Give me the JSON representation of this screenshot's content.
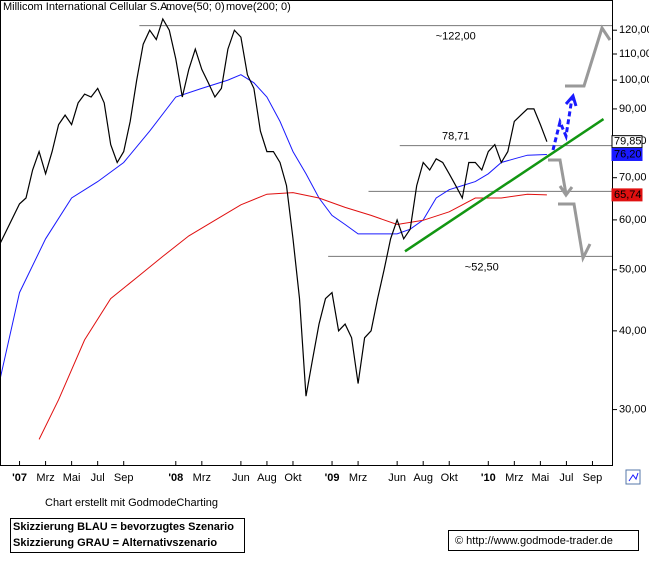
{
  "chart_data": {
    "type": "line",
    "title": "Millicom International Cellular S.A.",
    "log_scale": true,
    "legend_color": "#e0d000",
    "xlim": [
      -1.5,
      45.5
    ],
    "ylim": [
      24.5,
      134
    ],
    "xticks": [
      {
        "value": 0,
        "label": "'07",
        "major": true
      },
      {
        "value": 2,
        "label": "Mrz"
      },
      {
        "value": 4,
        "label": "Mai"
      },
      {
        "value": 6,
        "label": "Jul"
      },
      {
        "value": 8,
        "label": "Sep"
      },
      {
        "value": 12,
        "label": "'08",
        "major": true
      },
      {
        "value": 14,
        "label": "Mrz"
      },
      {
        "value": 17,
        "label": "Jun"
      },
      {
        "value": 19,
        "label": "Aug"
      },
      {
        "value": 21,
        "label": "Okt"
      },
      {
        "value": 24,
        "label": "'09",
        "major": true
      },
      {
        "value": 26,
        "label": "Mrz"
      },
      {
        "value": 29,
        "label": "Jun"
      },
      {
        "value": 31,
        "label": "Aug"
      },
      {
        "value": 33,
        "label": "Okt"
      },
      {
        "value": 36,
        "label": "'10",
        "major": true
      },
      {
        "value": 38,
        "label": "Mrz"
      },
      {
        "value": 40,
        "label": "Mai"
      },
      {
        "value": 42,
        "label": "Jul"
      },
      {
        "value": 44,
        "label": "Sep"
      }
    ],
    "yticks": [
      {
        "value": 120,
        "label": "120,00"
      },
      {
        "value": 110,
        "label": "110,00"
      },
      {
        "value": 100,
        "label": "100,00"
      },
      {
        "value": 90,
        "label": "90,00"
      },
      {
        "value": 80,
        "label": "80,00"
      },
      {
        "value": 70,
        "label": "70,00"
      },
      {
        "value": 60,
        "label": "60,00"
      },
      {
        "value": 50,
        "label": "50,00"
      },
      {
        "value": 40,
        "label": "40,00"
      },
      {
        "value": 30,
        "label": "30,00"
      }
    ],
    "price": {
      "color": "#000000",
      "x": [
        -1.5,
        0,
        0.5,
        1,
        1.5,
        2,
        2.5,
        3,
        3.5,
        4,
        4.5,
        5,
        5.5,
        6,
        6.5,
        7,
        7.5,
        8,
        8.5,
        9,
        9.5,
        10,
        10.5,
        11,
        11.5,
        12,
        12.5,
        13,
        13.5,
        14,
        14.5,
        15,
        15.5,
        16,
        16.5,
        17,
        17.5,
        18,
        18.5,
        19,
        19.5,
        20,
        20.5,
        21,
        21.5,
        22,
        22.5,
        23,
        23.5,
        24,
        24.5,
        25,
        25.5,
        26,
        26.5,
        27,
        27.5,
        28,
        28.5,
        29,
        29.5,
        30,
        30.5,
        31,
        31.5,
        32,
        32.5,
        33,
        33.5,
        34,
        34.5,
        35,
        35.5,
        36,
        36.5,
        37,
        37.5,
        38,
        38.5,
        39,
        39.5,
        40,
        40.5
      ],
      "values": [
        55,
        63.6,
        65,
        72,
        77,
        71,
        77,
        85,
        88,
        85,
        92,
        95,
        94,
        97,
        92,
        79,
        74,
        77,
        86,
        100,
        114,
        120,
        116,
        125,
        120,
        108,
        94,
        104,
        112,
        104,
        99,
        94,
        97,
        112,
        120,
        117,
        102,
        97,
        83,
        77,
        77,
        74,
        68,
        56,
        45,
        31.5,
        36,
        41,
        45,
        46,
        40,
        41,
        39,
        33,
        39,
        40,
        45,
        50,
        56,
        60,
        56,
        58,
        68,
        74,
        72,
        75,
        74,
        71,
        68,
        65,
        74,
        74,
        72,
        77,
        79,
        74,
        77,
        86,
        88,
        90,
        90,
        85,
        79.85
      ]
    },
    "series": [
      {
        "name": "move(50; 0)",
        "color": "#1a1aff",
        "x": [
          -1.5,
          0,
          2,
          4,
          6,
          8,
          10,
          12,
          14,
          16,
          17,
          18,
          19,
          20,
          21,
          22,
          23,
          24,
          25,
          26,
          28,
          29,
          30,
          31,
          32,
          33,
          34,
          35,
          36,
          37,
          38,
          39,
          40.5
        ],
        "values": [
          33.5,
          46,
          56,
          65,
          69,
          74,
          83,
          94,
          97,
          100,
          102,
          99,
          94,
          86,
          77,
          71,
          65,
          61,
          59,
          57,
          57,
          57,
          58,
          60,
          65,
          67,
          68,
          69,
          71,
          74,
          75,
          76,
          76.2
        ]
      },
      {
        "name": "move(200; 0)",
        "color": "#e01010",
        "x": [
          1.5,
          3,
          5,
          7,
          9,
          11,
          13,
          15,
          17,
          19,
          21,
          23,
          25,
          27,
          29,
          31,
          33,
          35,
          37,
          39,
          40.5
        ],
        "values": [
          26.9,
          31.1,
          38.7,
          45,
          48.6,
          52.5,
          56.6,
          59.9,
          63.4,
          65.9,
          66.3,
          65,
          62.8,
          61,
          59,
          59.9,
          61.8,
          65,
          65,
          65.9,
          65.74
        ]
      }
    ],
    "trendline": {
      "color": "#129612",
      "x": [
        29.6,
        44.85
      ],
      "values": [
        53.5,
        86.7
      ]
    },
    "levels": [
      {
        "value": 122,
        "label": "~122,00",
        "x_start": 9.2,
        "label_x": 33.5
      },
      {
        "value": 78.71,
        "label": "78,71",
        "x_start": 29.2,
        "label_x": 33.5
      },
      {
        "value": 66.6,
        "x_start": 26.8
      },
      {
        "value": 52.5,
        "label": "~52,50",
        "x_start": 23.7,
        "label_x": 35.5
      }
    ],
    "last_values": [
      {
        "value": 79.85,
        "label": "79,85",
        "color": "#ffffff",
        "text_color": "#000000"
      },
      {
        "value": 76.2,
        "label": "76,20",
        "color": "#1a1aff",
        "text_color": "#ffffff"
      },
      {
        "value": 65.74,
        "label": "65,74",
        "color": "#e01010",
        "text_color": "#ffffff"
      }
    ]
  },
  "footer": {
    "credit": "Chart erstellt mit GodmodeCharting",
    "notes": [
      "Skizzierung BLAU = bevorzugtes Szenario",
      "Skizzierung GRAU = Alternativszenario"
    ],
    "source": "© http://www.godmode-trader.de"
  }
}
